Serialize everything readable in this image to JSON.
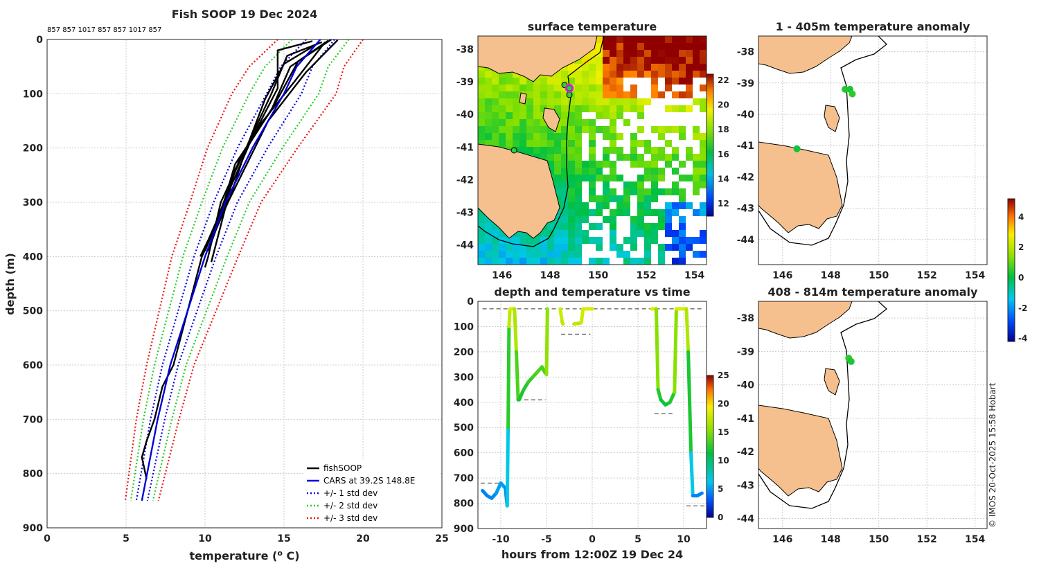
{
  "chart_data": [
    {
      "id": "profile",
      "type": "line",
      "title": "Fish SOOP 19 Dec 2024",
      "subtitle": "857 857 1017 857 857 1017 857",
      "xlabel": "temperature",
      "xlabel_unit_sup": "o",
      "xlabel_unit": " C)",
      "ylabel": "depth (m)",
      "xlim": [
        0,
        25
      ],
      "ylim": [
        0,
        900
      ],
      "xticks": [
        0,
        5,
        10,
        15,
        20,
        25
      ],
      "yticks": [
        0,
        100,
        200,
        300,
        400,
        500,
        600,
        700,
        800,
        900
      ],
      "y_reversed": true,
      "legend_position": "bottom-right",
      "legend": [
        {
          "label": "fishSOOP",
          "color": "#000000",
          "style": "solid"
        },
        {
          "label": "CARS at 39.2S 148.8E",
          "color": "#0000dd",
          "style": "solid"
        },
        {
          "label": "+/- 1 std dev",
          "color": "#0000dd",
          "style": "dotted"
        },
        {
          "label": "+/- 2 std dev",
          "color": "#22cc22",
          "style": "dotted"
        },
        {
          "label": "+/- 3 std dev",
          "color": "#ee1111",
          "style": "dotted"
        }
      ],
      "cars_mean": {
        "depth": [
          0,
          50,
          100,
          200,
          300,
          400,
          500,
          600,
          700,
          850
        ],
        "temp": [
          17.3,
          15.8,
          15.0,
          13.0,
          11.3,
          10.0,
          8.9,
          7.8,
          7.0,
          6.0
        ]
      },
      "cars_std": [
        0.9,
        1.0,
        1.1,
        0.95,
        0.75,
        0.7,
        0.6,
        0.5,
        0.45,
        0.35
      ],
      "fishsoop_profiles": [
        {
          "depth": [
            5,
            30,
            100,
            200,
            300,
            400,
            420
          ],
          "temp": [
            17.4,
            15.2,
            14.2,
            12.6,
            11.0,
            10.2,
            10.0
          ]
        },
        {
          "depth": [
            2,
            40,
            120,
            220,
            330,
            390
          ],
          "temp": [
            17.8,
            15.9,
            14.4,
            12.2,
            10.8,
            10.0
          ]
        },
        {
          "depth": [
            1,
            60,
            150,
            250,
            350,
            400
          ],
          "temp": [
            18.4,
            16.4,
            14.0,
            12.3,
            10.6,
            9.8
          ]
        },
        {
          "depth": [
            3,
            20,
            90,
            180,
            280,
            360,
            380
          ],
          "temp": [
            16.8,
            14.6,
            14.6,
            13.0,
            11.5,
            10.4,
            10.1
          ]
        },
        {
          "depth": [
            0,
            50,
            130,
            230,
            310,
            370,
            400
          ],
          "temp": [
            18.0,
            15.4,
            14.2,
            11.9,
            11.1,
            10.2,
            9.7
          ]
        },
        {
          "depth": [
            10,
            45,
            110,
            210,
            290,
            350,
            390
          ],
          "temp": [
            17.0,
            15.0,
            13.8,
            12.5,
            11.6,
            10.7,
            10.2
          ]
        },
        {
          "depth": [
            5,
            80,
            160,
            240,
            320,
            410
          ],
          "temp": [
            17.6,
            15.6,
            13.4,
            11.9,
            11.2,
            10.4
          ]
        },
        {
          "depth": [
            400,
            500,
            600,
            640,
            700,
            740,
            770,
            810
          ],
          "temp": [
            9.8,
            8.9,
            8.0,
            7.3,
            6.8,
            6.3,
            6.0,
            6.3
          ]
        }
      ]
    },
    {
      "id": "timeseries",
      "type": "scatter",
      "title": "depth and temperature vs time",
      "xlabel": "hours from 12:00Z 19 Dec 24",
      "xlim": [
        -12.5,
        12.5
      ],
      "ylim": [
        0,
        900
      ],
      "xticks": [
        -10,
        -5,
        0,
        5,
        10
      ],
      "yticks": [
        0,
        100,
        200,
        300,
        400,
        500,
        600,
        700,
        800,
        900
      ],
      "y_reversed": true,
      "colorbar": {
        "min": 0,
        "max": 25,
        "ticks": [
          0,
          5,
          10,
          15,
          20,
          25
        ]
      },
      "track": {
        "time": [
          -12,
          -11.5,
          -11,
          -10.5,
          -10,
          -9.5,
          -9.3,
          -9.2,
          -9.1,
          -9,
          -8.8,
          -8.5,
          -8.3,
          -8.1,
          -8,
          -7.5,
          -7,
          -6.5,
          -6,
          -5.5,
          -5.2,
          -5,
          -4.9,
          -3.5,
          -3.3,
          -3.2,
          -2,
          -1.2,
          -1,
          -0.5,
          0,
          1.5,
          3,
          5,
          6.5,
          7,
          7.2,
          7.5,
          8,
          8.5,
          9,
          9.2,
          9.5,
          10,
          10.3,
          10.5,
          10.8,
          11,
          11.5,
          12
        ],
        "depth": [
          750,
          770,
          780,
          760,
          720,
          740,
          810,
          500,
          100,
          30,
          30,
          30,
          200,
          390,
          390,
          350,
          320,
          300,
          280,
          260,
          280,
          290,
          30,
          30,
          80,
          90,
          90,
          85,
          30,
          30,
          30,
          30,
          30,
          30,
          30,
          30,
          350,
          390,
          410,
          400,
          360,
          30,
          30,
          30,
          30,
          200,
          600,
          770,
          770,
          760
        ],
        "temp": [
          5,
          5,
          5,
          5.5,
          6,
          5.5,
          5,
          9,
          16,
          18,
          18,
          18,
          15,
          12,
          12,
          12,
          12.5,
          13,
          13.5,
          13.5,
          13,
          13,
          18,
          18,
          17,
          17,
          17,
          17,
          18,
          18,
          18,
          18,
          18,
          18,
          18,
          18,
          12.5,
          12,
          11.5,
          12,
          12.5,
          18,
          18,
          18,
          18,
          15,
          9,
          5,
          5,
          5
        ]
      },
      "bottom_markers": [
        {
          "time": [
            -12.2,
            -10.2
          ],
          "depth": 720
        },
        {
          "time": [
            -8.2,
            -5.1
          ],
          "depth": 390
        },
        {
          "time": [
            -3.4,
            -0.2
          ],
          "depth": 130
        },
        {
          "time": [
            6.8,
            8.8
          ],
          "depth": 445
        },
        {
          "time": [
            10.3,
            12.3
          ],
          "depth": 810
        }
      ]
    },
    {
      "id": "sst_map",
      "type": "heatmap",
      "title": "surface temperature",
      "lon_range": [
        145,
        154.5
      ],
      "lat_range": [
        -44.6,
        -37.6
      ],
      "xticks": [
        146,
        148,
        150,
        152,
        154
      ],
      "yticks": [
        -38,
        -39,
        -40,
        -41,
        -42,
        -43,
        -44
      ],
      "colorbar": {
        "min": 11,
        "max": 22.5,
        "ticks": [
          12,
          14,
          16,
          18,
          20,
          22
        ]
      },
      "stations": [
        {
          "lon": 148.6,
          "lat": -39.1
        },
        {
          "lon": 148.8,
          "lat": -39.2
        },
        {
          "lon": 148.8,
          "lat": -39.4
        },
        {
          "lon": 146.5,
          "lat": -41.1
        }
      ],
      "latest_position": {
        "lon": 148.8,
        "lat": -39.2
      }
    },
    {
      "id": "anom_upper",
      "type": "scatter",
      "title": "1 - 405m temperature anomaly",
      "lon_range": [
        145,
        154.5
      ],
      "lat_range": [
        -44.8,
        -37.5
      ],
      "xticks": [
        146,
        148,
        150,
        152,
        154
      ],
      "yticks": [
        -38,
        -39,
        -40,
        -41,
        -42,
        -43,
        -44
      ],
      "points": [
        {
          "lon": 148.6,
          "lat": -39.2,
          "anomaly": 0.4
        },
        {
          "lon": 148.8,
          "lat": -39.2,
          "anomaly": 0.3
        },
        {
          "lon": 148.9,
          "lat": -39.35,
          "anomaly": 0.5
        },
        {
          "lon": 146.6,
          "lat": -41.1,
          "anomaly": 0.2
        }
      ]
    },
    {
      "id": "anom_lower",
      "type": "scatter",
      "title": "408 - 814m temperature anomaly",
      "lon_range": [
        145,
        154.5
      ],
      "lat_range": [
        -44.3,
        -37.5
      ],
      "xticks": [
        146,
        148,
        150,
        152,
        154
      ],
      "yticks": [
        -38,
        -39,
        -40,
        -41,
        -42,
        -43,
        -44
      ],
      "points": [
        {
          "lon": 148.75,
          "lat": -39.2,
          "anomaly": 0.5
        },
        {
          "lon": 148.85,
          "lat": -39.3,
          "anomaly": 0.3
        }
      ],
      "colorbar": {
        "min": -4.2,
        "max": 5.2,
        "ticks": [
          -4,
          -2,
          0,
          2,
          4
        ]
      }
    }
  ],
  "credit": "© IMOS 20-Oct-2025 15:58 Hobart"
}
